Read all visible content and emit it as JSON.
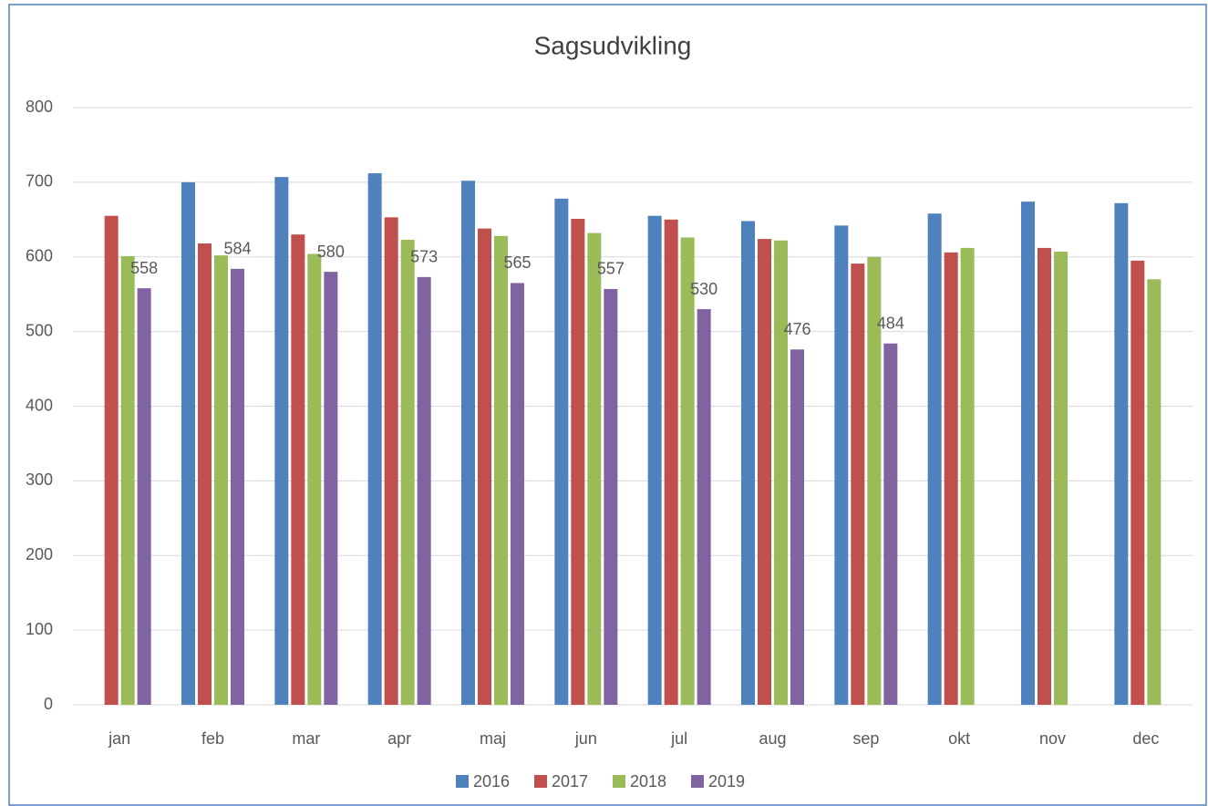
{
  "chart_data": {
    "type": "bar",
    "title": "Sagsudvikling",
    "categories": [
      "jan",
      "feb",
      "mar",
      "apr",
      "maj",
      "jun",
      "jul",
      "aug",
      "sep",
      "okt",
      "nov",
      "dec"
    ],
    "series": [
      {
        "name": "2016",
        "color": "#4f81bd",
        "values": [
          null,
          700,
          707,
          712,
          702,
          678,
          655,
          648,
          642,
          658,
          674,
          672
        ]
      },
      {
        "name": "2017",
        "color": "#c0504d",
        "values": [
          655,
          618,
          630,
          653,
          638,
          651,
          650,
          624,
          591,
          606,
          612,
          595
        ]
      },
      {
        "name": "2018",
        "color": "#9bbb59",
        "values": [
          601,
          602,
          604,
          623,
          628,
          632,
          626,
          622,
          600,
          612,
          607,
          570
        ]
      },
      {
        "name": "2019",
        "color": "#8064a2",
        "values": [
          558,
          584,
          580,
          573,
          565,
          557,
          530,
          476,
          484,
          null,
          null,
          null
        ],
        "data_labels": true
      }
    ],
    "ylim": [
      0,
      800
    ],
    "yticks": [
      0,
      100,
      200,
      300,
      400,
      500,
      600,
      700,
      800
    ],
    "grid": true,
    "legend": "bottom"
  }
}
